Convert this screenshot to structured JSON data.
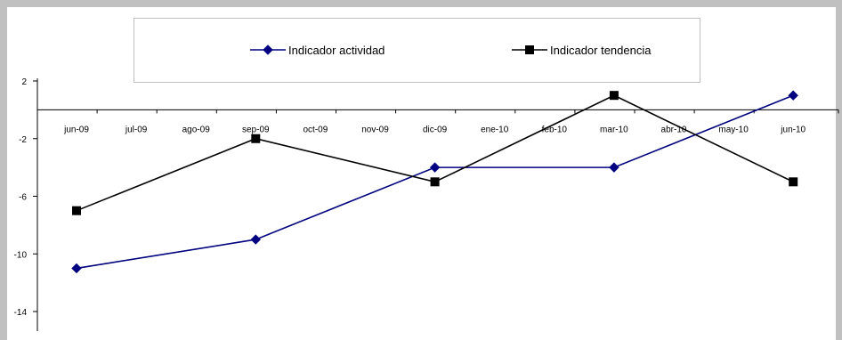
{
  "chart_data": {
    "type": "line",
    "categories": [
      "jun-09",
      "jul-09",
      "ago-09",
      "sep-09",
      "oct-09",
      "nov-09",
      "dic-09",
      "ene-10",
      "feb-10",
      "mar-10",
      "abr-10",
      "may-10",
      "jun-10"
    ],
    "yticks": [
      2,
      -2,
      -6,
      -10,
      -14
    ],
    "ylim": [
      -14,
      2
    ],
    "series": [
      {
        "name": "Indicador actividad",
        "color": "#000080",
        "marker": "diamond",
        "points": [
          {
            "x": "jun-09",
            "y": -11
          },
          {
            "x": "sep-09",
            "y": -9
          },
          {
            "x": "dic-09",
            "y": -4
          },
          {
            "x": "mar-10",
            "y": -4
          },
          {
            "x": "jun-10",
            "y": 1
          }
        ]
      },
      {
        "name": "Indicador tendencia",
        "color": "#000000",
        "marker": "square",
        "points": [
          {
            "x": "jun-09",
            "y": -7
          },
          {
            "x": "sep-09",
            "y": -2
          },
          {
            "x": "dic-09",
            "y": -5
          },
          {
            "x": "mar-10",
            "y": 1
          },
          {
            "x": "jun-10",
            "y": -5
          }
        ]
      }
    ],
    "legend_position": "top",
    "grid": false
  }
}
